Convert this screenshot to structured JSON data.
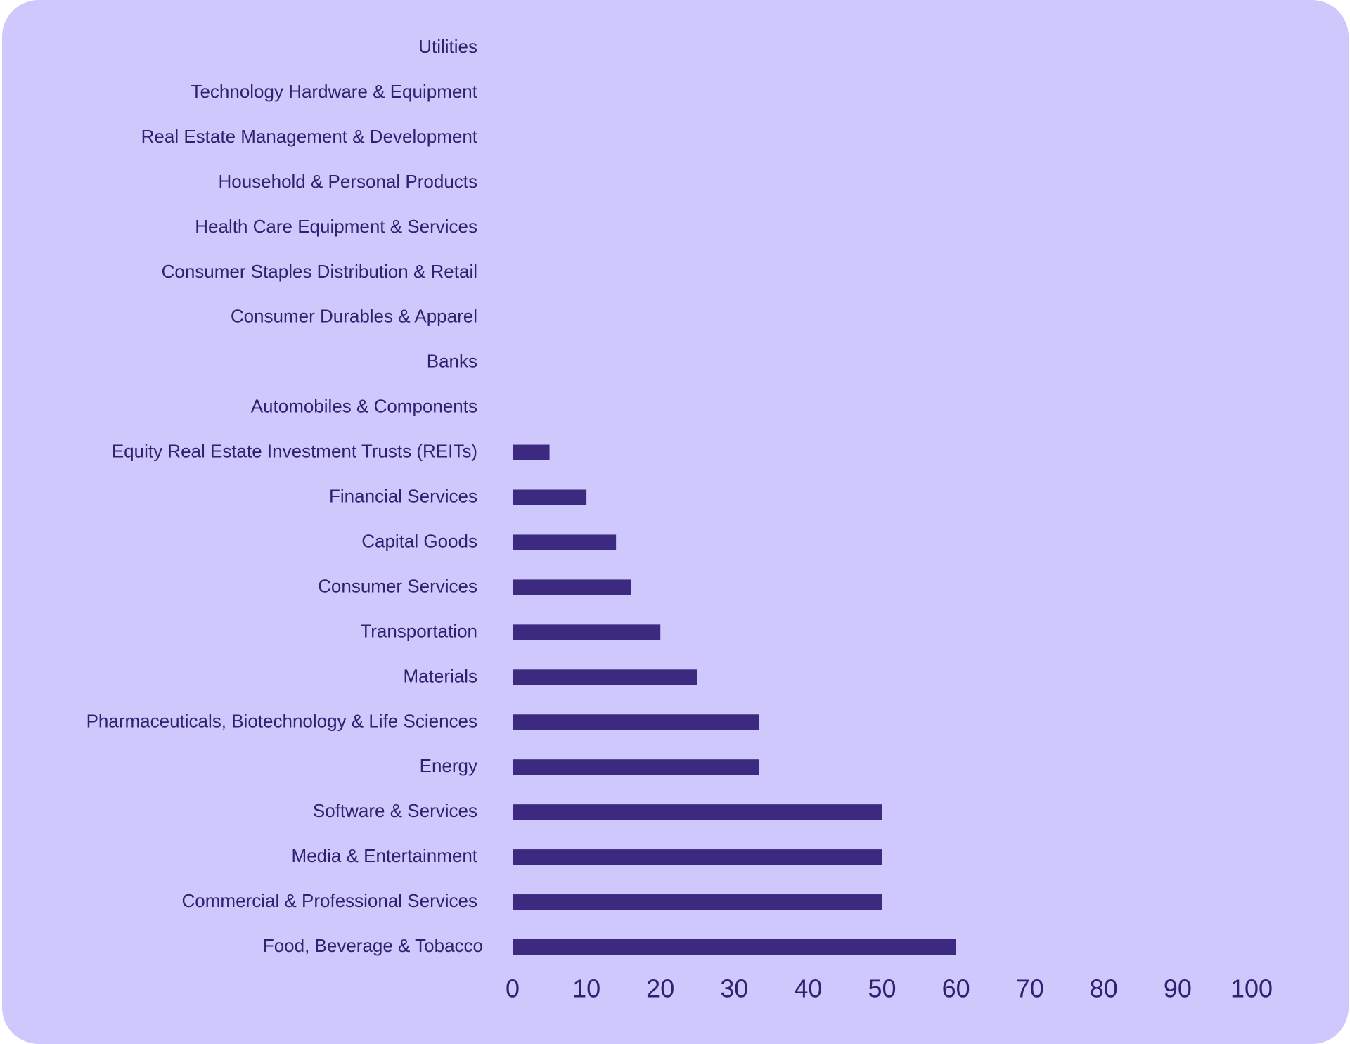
{
  "colors": {
    "background": "#cfc8fc",
    "bar": "#3b2a7f",
    "text": "#2e2170"
  },
  "chart_data": {
    "type": "bar",
    "orientation": "horizontal",
    "title": "",
    "xlabel": "",
    "ylabel": "",
    "xlim": [
      0,
      100
    ],
    "x_ticks": [
      0,
      10,
      20,
      30,
      40,
      50,
      60,
      70,
      80,
      90,
      100
    ],
    "grid": false,
    "categories": [
      "Utilities",
      "Technology Hardware & Equipment",
      "Real Estate Management & Development",
      "Household & Personal Products",
      "Health Care Equipment & Services",
      "Consumer Staples Distribution & Retail",
      "Consumer Durables & Apparel",
      "Banks",
      "Automobiles & Components",
      "Equity Real Estate Investment Trusts (REITs)",
      "Financial Services",
      "Capital Goods",
      "Consumer Services",
      "Transportation",
      "Materials",
      "Pharmaceuticals, Biotechnology & Life Sciences",
      "Energy",
      "Software & Services",
      "Media & Entertainment",
      "Commercial & Professional Services",
      "Food, Beverage & Tobacco"
    ],
    "values": [
      0,
      0,
      0,
      0,
      0,
      0,
      0,
      0,
      0,
      5,
      10,
      14,
      16,
      20,
      25,
      33.3,
      33.3,
      50,
      50,
      50,
      60
    ]
  }
}
